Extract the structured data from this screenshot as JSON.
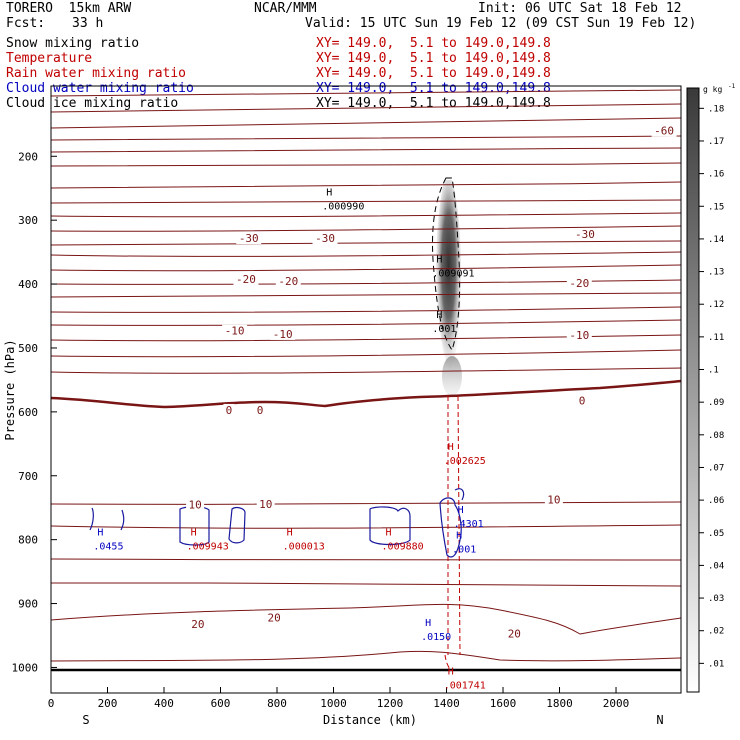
{
  "header": {
    "model": "TORERO  15km ARW",
    "org": "NCAR/MMM",
    "init": "Init: 06 UTC Sat 18 Feb 12",
    "fcst_label": "Fcst:",
    "fcst_value": "33 h",
    "valid": "Valid: 15 UTC Sun 19 Feb 12 (09 CST Sun 19 Feb 12)"
  },
  "fields": [
    {
      "name": "Snow mixing ratio",
      "xy": "XY= 149.0,  5.1 to 149.0,149.8",
      "color": "#000000"
    },
    {
      "name": "Temperature",
      "xy": "XY= 149.0,  5.1 to 149.0,149.8",
      "color": "#c00000"
    },
    {
      "name": "Rain water mixing ratio",
      "xy": "XY= 149.0,  5.1 to 149.0,149.8",
      "color": "#c00000"
    },
    {
      "name": "Cloud water mixing ratio",
      "xy": "XY= 149.0,  5.1 to 149.0,149.8",
      "color": "#0000c0"
    },
    {
      "name": "Cloud ice mixing ratio",
      "xy": "XY= 149.0,  5.1 to 149.0,149.8",
      "color": "#000000"
    }
  ],
  "chart_data": {
    "type": "contour-cross-section",
    "xlabel": "Distance (km)",
    "ylabel": "Pressure (hPa)",
    "xlim": [
      0,
      2230
    ],
    "ylim": [
      1040,
      90
    ],
    "x_ticks": [
      0,
      200,
      400,
      600,
      800,
      1000,
      1200,
      1400,
      1600,
      1800,
      2000
    ],
    "y_ticks": [
      200,
      300,
      400,
      500,
      600,
      700,
      800,
      900,
      1000
    ],
    "left_end": "S",
    "right_end": "N",
    "colorbar": {
      "unit": "g kg",
      "unit_exp": "-1",
      "ticks": [
        ".01",
        ".02",
        ".03",
        ".04",
        ".05",
        ".06",
        ".07",
        ".08",
        ".09",
        ".1",
        ".11",
        ".12",
        ".13",
        ".14",
        ".15",
        ".16",
        ".17",
        ".18"
      ]
    },
    "temperature_contour_labels": [
      {
        "text": "-60",
        "x": 2170,
        "p": 160
      },
      {
        "text": "-30",
        "x": 700,
        "p": 328
      },
      {
        "text": "-30",
        "x": 970,
        "p": 328
      },
      {
        "text": "-30",
        "x": 1890,
        "p": 322
      },
      {
        "text": "-20",
        "x": 690,
        "p": 392
      },
      {
        "text": "-20",
        "x": 840,
        "p": 395
      },
      {
        "text": "-20",
        "x": 1870,
        "p": 398
      },
      {
        "text": "-10",
        "x": 650,
        "p": 473
      },
      {
        "text": "-10",
        "x": 820,
        "p": 478
      },
      {
        "text": "-10",
        "x": 1870,
        "p": 480
      },
      {
        "text": "0",
        "x": 630,
        "p": 597
      },
      {
        "text": "0",
        "x": 740,
        "p": 597
      },
      {
        "text": "0",
        "x": 1880,
        "p": 582
      },
      {
        "text": "10",
        "x": 510,
        "p": 745
      },
      {
        "text": "10",
        "x": 760,
        "p": 744
      },
      {
        "text": "10",
        "x": 1780,
        "p": 737
      },
      {
        "text": "20",
        "x": 520,
        "p": 932
      },
      {
        "text": "20",
        "x": 790,
        "p": 922
      },
      {
        "text": "20",
        "x": 1640,
        "p": 947
      }
    ],
    "max_markers": [
      {
        "text": ".000990",
        "x": 960,
        "p": 266,
        "color": "#000000"
      },
      {
        "text": ".009091",
        "x": 1350,
        "p": 371,
        "color": "#000000"
      },
      {
        "text": ".001",
        "x": 1350,
        "p": 458,
        "color": "#000000"
      },
      {
        "text": ".002625",
        "x": 1390,
        "p": 664,
        "color": "#c00000"
      },
      {
        "text": ".000013",
        "x": 820,
        "p": 798,
        "color": "#c00000"
      },
      {
        "text": ".009943",
        "x": 480,
        "p": 798,
        "color": "#c00000"
      },
      {
        "text": ".009880",
        "x": 1170,
        "p": 798,
        "color": "#c00000"
      },
      {
        "text": ".0455",
        "x": 150,
        "p": 798,
        "color": "#0000c0"
      },
      {
        "text": ".4301",
        "x": 1425,
        "p": 763,
        "color": "#0000c0"
      },
      {
        "text": ".001",
        "x": 1420,
        "p": 803,
        "color": "#0000c0"
      },
      {
        "text": ".0150",
        "x": 1310,
        "p": 940,
        "color": "#0000c0"
      },
      {
        "text": ".001741",
        "x": 1390,
        "p": 1016,
        "color": "#c00000"
      }
    ]
  }
}
